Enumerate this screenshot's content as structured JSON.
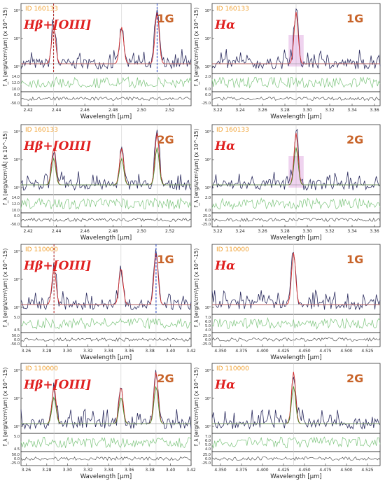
{
  "figure": {
    "ylabel": "f_λ [erg/s/cm²/μm] (x 10^-15)",
    "ylabel_alt": "f_λ [erg/s/cm²/Å] (x 10^-15)",
    "xlabel": "Wavelength [μm]"
  },
  "colors": {
    "data": "#2b2b5e",
    "model": "#d42a2a",
    "component": "#4a8a2a",
    "residual_top": "#7cc47c",
    "residual_bottom": "#555555",
    "id_text": "#f0a030",
    "panel_title": "#e02020",
    "grating": "#c8642a",
    "marker_red": "#b02020",
    "marker_blue": "#2040c0",
    "magenta_band": "#d080d0"
  },
  "chart_data": [
    {
      "type": "line",
      "id_label": "ID 160133",
      "title": "Hβ+[OIII]",
      "grating": "1G",
      "xlim": [
        2.415,
        2.535
      ],
      "xticks": [
        "2.42",
        "2.44",
        "2.46",
        "2.48",
        "2.50",
        "2.52"
      ],
      "xtick_values": [
        2.42,
        2.44,
        2.46,
        2.48,
        2.5,
        2.52
      ],
      "yticks": [
        "10¹",
        "10³",
        "10⁴"
      ],
      "resid1_ticks": [
        "14.0",
        "12.0",
        "10.0"
      ],
      "resid2_ticks": [
        "0.0",
        "-50.0"
      ],
      "lines": [
        2.438,
        2.486,
        2.511
      ],
      "dashed": [
        {
          "x": 2.438,
          "color": "marker_red"
        },
        {
          "x": 2.511,
          "color": "marker_blue"
        }
      ],
      "show_components": false,
      "magenta": false
    },
    {
      "type": "line",
      "id_label": "ID 160133",
      "title": "Hα",
      "grating": "1G",
      "xlim": [
        3.215,
        3.365
      ],
      "xticks": [
        "3.22",
        "3.24",
        "3.26",
        "3.28",
        "3.30",
        "3.32",
        "3.34",
        "3.36"
      ],
      "xtick_values": [
        3.22,
        3.24,
        3.26,
        3.28,
        3.3,
        3.32,
        3.34,
        3.36
      ],
      "yticks": [
        "10⁰",
        "10²",
        "10³"
      ],
      "resid1_ticks": [
        "2.0",
        "0.0"
      ],
      "resid2_ticks": [
        "0.0",
        "-25.0"
      ],
      "lines": [
        3.29
      ],
      "dashed": [],
      "show_components": false,
      "magenta": true
    },
    {
      "type": "line",
      "id_label": "ID 160133",
      "title": "Hβ+[OIII]",
      "grating": "2G",
      "xlim": [
        2.415,
        2.535
      ],
      "xticks": [
        "2.42",
        "2.44",
        "2.46",
        "2.48",
        "2.50",
        "2.52"
      ],
      "xtick_values": [
        2.42,
        2.44,
        2.46,
        2.48,
        2.5,
        2.52
      ],
      "yticks": [
        "10¹",
        "10³",
        "10⁴"
      ],
      "resid1_ticks": [
        "14.0",
        "12.0",
        "10.0"
      ],
      "resid2_ticks": [
        "0.0",
        "-50.0"
      ],
      "lines": [
        2.438,
        2.486,
        2.511
      ],
      "dashed": [],
      "show_components": true,
      "magenta": false
    },
    {
      "type": "line",
      "id_label": "ID 160133",
      "title": "Hα",
      "grating": "2G",
      "xlim": [
        3.215,
        3.365
      ],
      "xticks": [
        "3.22",
        "3.24",
        "3.26",
        "3.28",
        "3.30",
        "3.32",
        "3.34",
        "3.36"
      ],
      "xtick_values": [
        3.22,
        3.24,
        3.26,
        3.28,
        3.3,
        3.32,
        3.34,
        3.36
      ],
      "yticks": [
        "10⁰",
        "10²",
        "10³"
      ],
      "resid1_ticks": [
        "2.0",
        "0.0"
      ],
      "resid2_ticks": [
        "25.0",
        "0.0",
        "-25.0"
      ],
      "lines": [
        3.29
      ],
      "dashed": [],
      "show_components": true,
      "magenta": true
    },
    {
      "type": "line",
      "id_label": "ID 110000",
      "title": "Hβ+[OIII]",
      "grating": "1G",
      "xlim": [
        3.255,
        3.42
      ],
      "xticks": [
        "3.26",
        "3.28",
        "3.30",
        "3.32",
        "3.34",
        "3.36",
        "3.38",
        "3.40",
        "3.42"
      ],
      "xtick_values": [
        3.26,
        3.28,
        3.3,
        3.32,
        3.34,
        3.36,
        3.38,
        3.4,
        3.42
      ],
      "yticks": [
        "10¹",
        "10²",
        "10³"
      ],
      "resid1_ticks": [
        "5.0",
        "4.5"
      ],
      "resid2_ticks": [
        "50.0",
        "0.0",
        "-50.0"
      ],
      "lines": [
        3.287,
        3.352,
        3.386
      ],
      "dashed": [
        {
          "x": 3.287,
          "color": "marker_red"
        },
        {
          "x": 3.386,
          "color": "marker_blue"
        }
      ],
      "show_components": false,
      "magenta": false
    },
    {
      "type": "line",
      "id_label": "ID 110000",
      "title": "Hα",
      "grating": "1G",
      "xlim": [
        4.34,
        4.54
      ],
      "xticks": [
        "4.350",
        "4.375",
        "4.400",
        "4.425",
        "4.450",
        "4.475",
        "4.500",
        "4.525"
      ],
      "xtick_values": [
        4.35,
        4.375,
        4.4,
        4.425,
        4.45,
        4.475,
        4.5,
        4.525
      ],
      "yticks": [
        "10¹"
      ],
      "resid1_ticks": [
        "7.0",
        "6.0",
        "5.0",
        "4.0"
      ],
      "resid2_ticks": [
        "25.0",
        "0.0",
        "-25.0"
      ],
      "lines": [
        4.437
      ],
      "dashed": [],
      "show_components": false,
      "magenta": false
    },
    {
      "type": "line",
      "id_label": "ID 110000",
      "title": "Hβ+[OIII]",
      "grating": "2G",
      "xlim": [
        3.255,
        3.42
      ],
      "xticks": [
        "3.26",
        "3.28",
        "3.30",
        "3.32",
        "3.34",
        "3.36",
        "3.38",
        "3.40",
        "3.42"
      ],
      "xtick_values": [
        3.26,
        3.28,
        3.3,
        3.32,
        3.34,
        3.36,
        3.38,
        3.4,
        3.42
      ],
      "yticks": [
        "10¹",
        "10²",
        "10³"
      ],
      "resid1_ticks": [
        "5.0",
        "4.5"
      ],
      "resid2_ticks": [
        "50.0",
        "0.0",
        "-25.0"
      ],
      "lines": [
        3.287,
        3.352,
        3.386
      ],
      "dashed": [],
      "show_components": true,
      "magenta": false
    },
    {
      "type": "line",
      "id_label": "ID 110000",
      "title": "Hα",
      "grating": "2G",
      "xlim": [
        4.34,
        4.54
      ],
      "xticks": [
        "4.350",
        "4.375",
        "4.400",
        "4.425",
        "4.450",
        "4.475",
        "4.500",
        "4.525"
      ],
      "xtick_values": [
        4.35,
        4.375,
        4.4,
        4.425,
        4.45,
        4.475,
        4.5,
        4.525
      ],
      "yticks": [
        "10¹",
        "10²",
        "10³"
      ],
      "resid1_ticks": [
        "7.0",
        "6.0",
        "5.0",
        "4.0"
      ],
      "resid2_ticks": [
        "25.0",
        "0.0",
        "-25.0"
      ],
      "lines": [
        4.437
      ],
      "dashed": [],
      "show_components": true,
      "magenta": false
    }
  ]
}
